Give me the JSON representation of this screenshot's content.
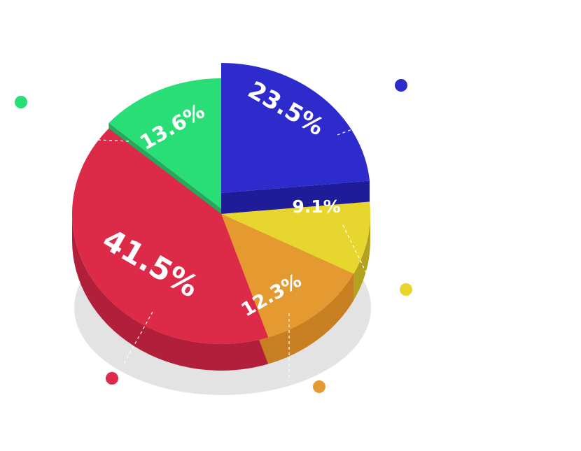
{
  "chart_data": {
    "type": "pie",
    "title": "",
    "style": "3d-exploded",
    "slices": [
      {
        "label": "23.5%",
        "value": 23.5,
        "color": "#2E2BCC",
        "side_color": "#1E1C98"
      },
      {
        "label": "9.1%",
        "value": 9.1,
        "color": "#E7D62D",
        "side_color": "#B3A21F"
      },
      {
        "label": "12.3%",
        "value": 12.3,
        "color": "#E59A31",
        "side_color": "#C77F22"
      },
      {
        "label": "41.5%",
        "value": 41.5,
        "color": "#DC2A48",
        "side_color": "#B11F3A"
      },
      {
        "label": "13.6%",
        "value": 13.6,
        "color": "#2ADE77",
        "side_color": "#26A95C"
      }
    ]
  },
  "colors": {
    "shadow": "#E3E3E3",
    "leader_line": "#ffffff"
  }
}
